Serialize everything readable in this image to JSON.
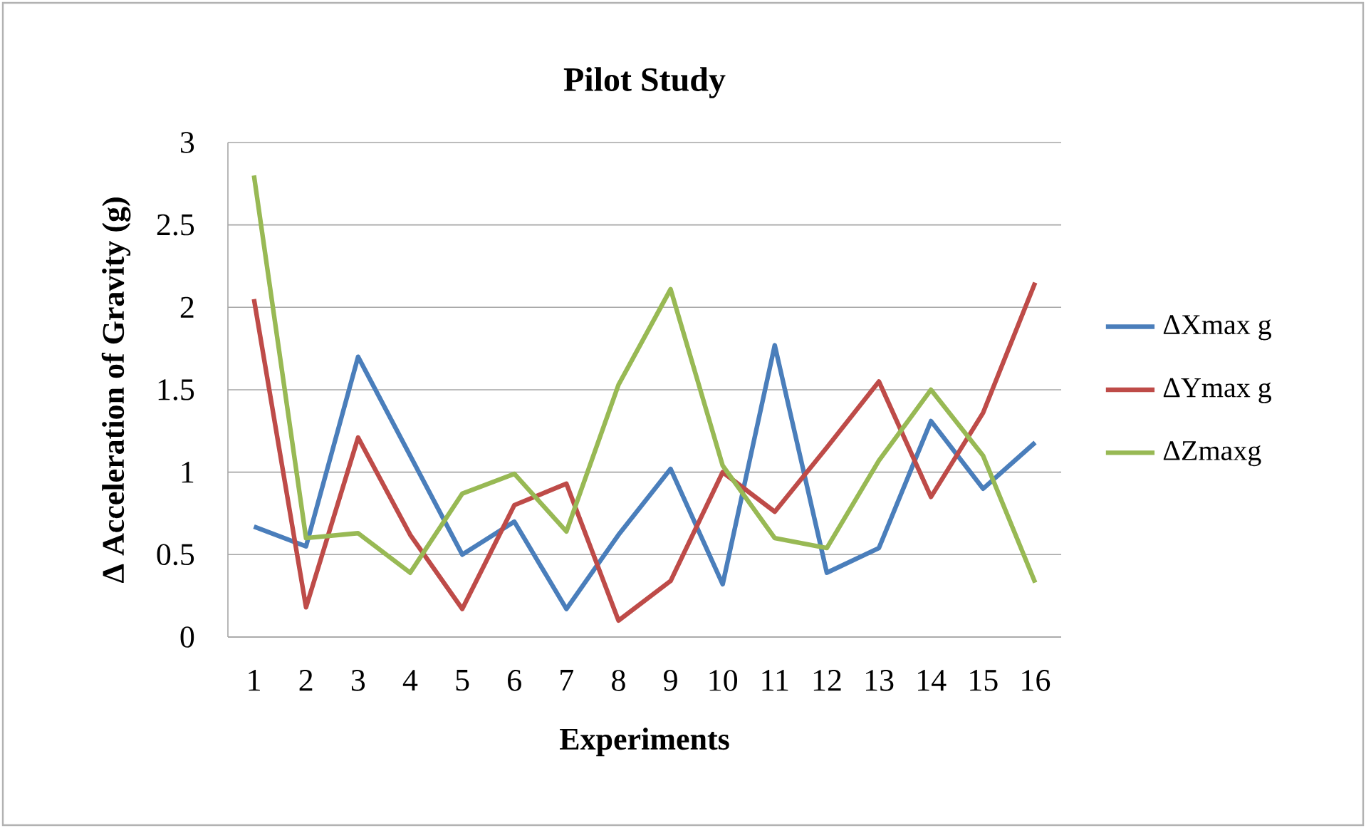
{
  "chart_data": {
    "type": "line",
    "title": "Pilot Study",
    "xlabel": "Experiments",
    "ylabel": "Δ Acceleration of Gravity  (g)",
    "categories": [
      "1",
      "2",
      "3",
      "4",
      "5",
      "6",
      "7",
      "8",
      "9",
      "10",
      "11",
      "12",
      "13",
      "14",
      "15",
      "16"
    ],
    "series": [
      {
        "name": "ΔXmax g",
        "color": "#4a7ebb",
        "values": [
          0.67,
          0.55,
          1.7,
          1.1,
          0.5,
          0.7,
          0.17,
          0.62,
          1.02,
          0.32,
          1.77,
          0.39,
          0.54,
          1.31,
          0.9,
          1.18
        ]
      },
      {
        "name": "ΔYmax g",
        "color": "#be4b48",
        "values": [
          2.05,
          0.18,
          1.21,
          0.62,
          0.17,
          0.8,
          0.93,
          0.1,
          0.34,
          1.0,
          0.76,
          1.15,
          1.55,
          0.85,
          1.36,
          2.15
        ]
      },
      {
        "name": "ΔZmaxg",
        "color": "#98b954",
        "values": [
          2.8,
          0.6,
          0.63,
          0.39,
          0.87,
          0.99,
          0.64,
          1.53,
          2.11,
          1.04,
          0.6,
          0.54,
          1.07,
          1.5,
          1.1,
          0.33
        ]
      }
    ],
    "ylim": [
      0,
      3
    ],
    "yticks": [
      0,
      0.5,
      1,
      1.5,
      2,
      2.5,
      3
    ],
    "grid": "y",
    "legend": "right"
  }
}
